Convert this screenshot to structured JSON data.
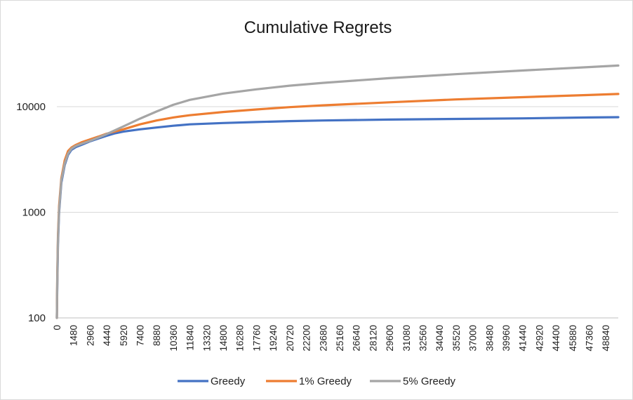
{
  "chart_data": {
    "type": "line",
    "title": "Cumulative Regrets",
    "xlabel": "",
    "ylabel": "",
    "y_scale": "log",
    "ylim": [
      100,
      30000
    ],
    "xlim": [
      0,
      50000
    ],
    "y_ticks": [
      "100",
      "1000",
      "10000"
    ],
    "x_ticks": [
      0,
      1480,
      2960,
      4440,
      5920,
      7400,
      8880,
      10360,
      11840,
      13320,
      14800,
      16280,
      17760,
      19240,
      20720,
      22200,
      23680,
      25160,
      26640,
      28120,
      29600,
      31080,
      32560,
      34040,
      35520,
      37000,
      38480,
      39960,
      41440,
      42920,
      44400,
      45880,
      47360,
      48840
    ],
    "grid": true,
    "legend_position": "bottom",
    "series": [
      {
        "name": "Greedy",
        "color": "#4472C4",
        "points": [
          [
            1,
            100
          ],
          [
            40,
            200
          ],
          [
            100,
            500
          ],
          [
            200,
            1000
          ],
          [
            400,
            1900
          ],
          [
            700,
            2800
          ],
          [
            1000,
            3500
          ],
          [
            1300,
            3900
          ],
          [
            1700,
            4150
          ],
          [
            2200,
            4350
          ],
          [
            2960,
            4700
          ],
          [
            3700,
            5000
          ],
          [
            4440,
            5300
          ],
          [
            5200,
            5600
          ],
          [
            5920,
            5800
          ],
          [
            7400,
            6100
          ],
          [
            8880,
            6350
          ],
          [
            10360,
            6600
          ],
          [
            11840,
            6800
          ],
          [
            14800,
            7000
          ],
          [
            17760,
            7150
          ],
          [
            20720,
            7300
          ],
          [
            23680,
            7400
          ],
          [
            29600,
            7550
          ],
          [
            35520,
            7650
          ],
          [
            41440,
            7750
          ],
          [
            47360,
            7900
          ],
          [
            50000,
            7950
          ]
        ]
      },
      {
        "name": "1% Greedy",
        "color": "#ED7D31",
        "points": [
          [
            1,
            100
          ],
          [
            40,
            250
          ],
          [
            100,
            600
          ],
          [
            200,
            1150
          ],
          [
            400,
            2100
          ],
          [
            700,
            3100
          ],
          [
            1000,
            3800
          ],
          [
            1300,
            4100
          ],
          [
            1700,
            4350
          ],
          [
            2200,
            4600
          ],
          [
            2960,
            4900
          ],
          [
            3700,
            5200
          ],
          [
            4440,
            5550
          ],
          [
            5920,
            6100
          ],
          [
            7400,
            6800
          ],
          [
            8880,
            7400
          ],
          [
            10360,
            7900
          ],
          [
            11840,
            8300
          ],
          [
            14800,
            8900
          ],
          [
            17760,
            9400
          ],
          [
            20720,
            9900
          ],
          [
            23680,
            10300
          ],
          [
            29600,
            11000
          ],
          [
            35520,
            11700
          ],
          [
            41440,
            12300
          ],
          [
            47360,
            12900
          ],
          [
            50000,
            13200
          ]
        ]
      },
      {
        "name": "5% Greedy",
        "color": "#A5A5A5",
        "points": [
          [
            1,
            100
          ],
          [
            40,
            230
          ],
          [
            100,
            550
          ],
          [
            200,
            1050
          ],
          [
            400,
            2000
          ],
          [
            700,
            2900
          ],
          [
            1000,
            3600
          ],
          [
            1300,
            4000
          ],
          [
            1700,
            4250
          ],
          [
            2200,
            4450
          ],
          [
            2960,
            4750
          ],
          [
            3700,
            5100
          ],
          [
            4440,
            5500
          ],
          [
            5920,
            6500
          ],
          [
            7400,
            7700
          ],
          [
            8880,
            9000
          ],
          [
            10360,
            10400
          ],
          [
            11840,
            11600
          ],
          [
            14800,
            13300
          ],
          [
            17760,
            14600
          ],
          [
            20720,
            15800
          ],
          [
            23680,
            16800
          ],
          [
            29600,
            18600
          ],
          [
            35520,
            20300
          ],
          [
            41440,
            22000
          ],
          [
            47360,
            23700
          ],
          [
            50000,
            24500
          ]
        ]
      }
    ]
  }
}
